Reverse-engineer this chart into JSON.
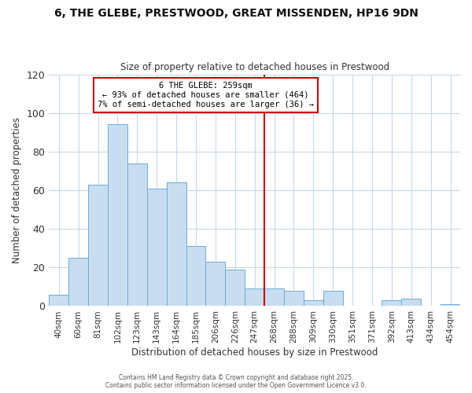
{
  "title_line1": "6, THE GLEBE, PRESTWOOD, GREAT MISSENDEN, HP16 9DN",
  "title_line2": "Size of property relative to detached houses in Prestwood",
  "xlabel": "Distribution of detached houses by size in Prestwood",
  "ylabel": "Number of detached properties",
  "bin_labels": [
    "40sqm",
    "60sqm",
    "81sqm",
    "102sqm",
    "123sqm",
    "143sqm",
    "164sqm",
    "185sqm",
    "206sqm",
    "226sqm",
    "247sqm",
    "268sqm",
    "288sqm",
    "309sqm",
    "330sqm",
    "351sqm",
    "371sqm",
    "392sqm",
    "413sqm",
    "434sqm",
    "454sqm"
  ],
  "bar_heights": [
    6,
    25,
    63,
    94,
    74,
    61,
    64,
    31,
    23,
    19,
    9,
    9,
    8,
    3,
    8,
    0,
    0,
    3,
    4,
    0,
    1
  ],
  "bar_color": "#c9ddf0",
  "bar_edge_color": "#6aaed6",
  "vline_x": 10.5,
  "vline_color": "#cc0000",
  "annotation_title": "6 THE GLEBE: 259sqm",
  "annotation_line1": "← 93% of detached houses are smaller (464)",
  "annotation_line2": "7% of semi-detached houses are larger (36) →",
  "annotation_box_color": "#cc0000",
  "ylim": [
    0,
    120
  ],
  "yticks": [
    0,
    20,
    40,
    60,
    80,
    100,
    120
  ],
  "footnote_line1": "Contains HM Land Registry data © Crown copyright and database right 2025.",
  "footnote_line2": "Contains public sector information licensed under the Open Government Licence v3.0.",
  "bg_color": "#ffffff",
  "grid_color": "#c8d8e8"
}
